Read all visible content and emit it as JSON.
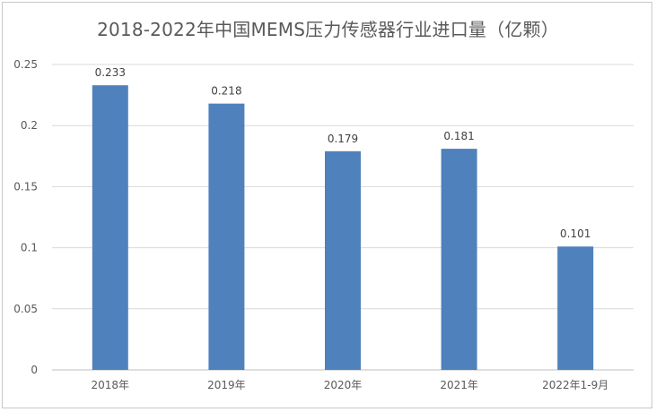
{
  "chart_data": {
    "type": "bar",
    "title": "2018-2022年中国MEMS压力传感器行业进口量（亿颗）",
    "categories": [
      "2018年",
      "2019年",
      "2020年",
      "2021年",
      "2022年1-9月"
    ],
    "values": [
      0.233,
      0.218,
      0.179,
      0.181,
      0.101
    ],
    "data_labels": [
      "0.233",
      "0.218",
      "0.179",
      "0.181",
      "0.101"
    ],
    "ylim": [
      0,
      0.25
    ],
    "yticks": [
      0,
      0.05,
      0.1,
      0.15,
      0.2,
      0.25
    ],
    "ytick_labels": [
      "0",
      "0.05",
      "0.1",
      "0.15",
      "0.2",
      "0.25"
    ],
    "grid": true,
    "legend": "none",
    "colors": {
      "bar": "#4f81bd",
      "grid": "#d9d9d9",
      "axis": "#bfbfbf"
    }
  }
}
